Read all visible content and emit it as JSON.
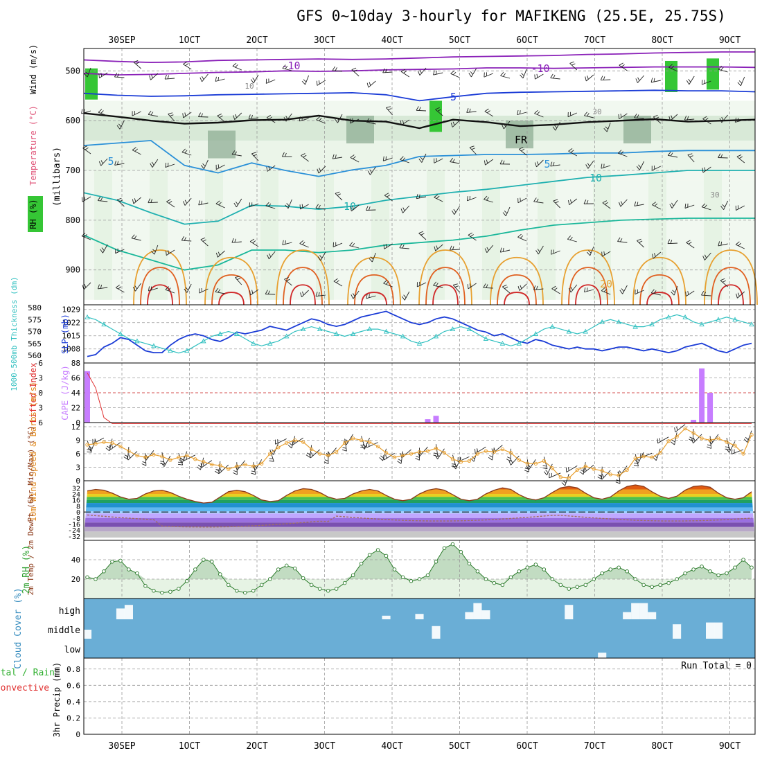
{
  "title": "GFS 0~10day 3-hourly for MAFIKENG (25.5E, 25.75S)",
  "run_total_label": "Run Total = 0",
  "dates": [
    "30SEP",
    "1OCT",
    "2OCT",
    "3OCT",
    "4OCT",
    "5OCT",
    "6OCT",
    "7OCT",
    "8OCT",
    "9OCT"
  ],
  "colors": {
    "grid": "#9a9a9a",
    "rh_dark": "#8aaa90",
    "rh_mid": "#c2dcc2",
    "rh_light": "#e6f3e4",
    "rh_bright": "#35c635",
    "cloud": "#6aaed6",
    "cape": "#c77dff",
    "lifted": "#e03030",
    "slp": "#1a3bd6",
    "thickness": "#30c0c0",
    "wind": "#e8a030",
    "temp_line": "#8b3a1a",
    "dew": "#a07060"
  },
  "chart_data": [
    {
      "type": "contour",
      "name": "upper-air",
      "ylabel": "(millibars)",
      "side_labels": [
        "RH (%)",
        "Temperature (°C)",
        "Wind (m/s)"
      ],
      "y_ticks": [
        500,
        600,
        700,
        800,
        900
      ],
      "ylim": [
        970,
        455
      ],
      "contour_labels": [
        "-10",
        "-10",
        "-5",
        "5",
        "5",
        "10",
        "10",
        "20",
        "FR",
        "10",
        "30",
        "30"
      ],
      "isotherms": [
        {
          "temp": -10,
          "color": "#8a20b8",
          "p": [
            478,
            481,
            483,
            482,
            479,
            478,
            477,
            476,
            477,
            476,
            474,
            472,
            471,
            470,
            469,
            467,
            466,
            464,
            463,
            462,
            462
          ]
        },
        {
          "temp": -10,
          "color": "#8a20b8",
          "p": [
            505,
            508,
            507,
            505,
            503,
            502,
            500,
            501,
            500,
            498,
            497,
            496,
            494,
            494,
            495,
            494,
            493,
            492,
            492,
            492,
            493
          ]
        },
        {
          "temp": -5,
          "color": "#1a3bd6",
          "p": [
            545,
            549,
            551,
            550,
            548,
            547,
            546,
            545,
            544,
            548,
            560,
            552,
            545,
            543,
            542,
            541,
            540,
            539,
            540,
            540,
            542
          ]
        },
        {
          "temp": 0,
          "color": "#111111",
          "p": [
            585,
            592,
            600,
            606,
            604,
            599,
            598,
            590,
            600,
            602,
            615,
            598,
            603,
            611,
            608,
            603,
            600,
            597,
            602,
            600,
            598
          ]
        },
        {
          "temp": 5,
          "color": "#2a90d8",
          "p": [
            650,
            645,
            640,
            690,
            705,
            685,
            700,
            712,
            699,
            690,
            672,
            670,
            668,
            668,
            667,
            665,
            665,
            662,
            660,
            660,
            660
          ]
        },
        {
          "temp": 10,
          "color": "#1fb0b0",
          "p": [
            745,
            760,
            785,
            808,
            802,
            770,
            772,
            778,
            772,
            760,
            752,
            744,
            738,
            730,
            722,
            714,
            710,
            705,
            700,
            700,
            700
          ]
        },
        {
          "temp": 15,
          "color": "#1ab79a",
          "p": [
            830,
            860,
            880,
            900,
            890,
            860,
            860,
            865,
            860,
            850,
            845,
            840,
            832,
            820,
            810,
            805,
            800,
            798,
            796,
            796,
            796
          ]
        }
      ]
    },
    {
      "type": "line",
      "name": "slp-thickness",
      "left_label": "1000-500mb Thickness (dm)",
      "right_label": "SLP (mb)",
      "thickness_ticks": [
        560,
        565,
        570,
        575,
        580
      ],
      "slp_ticks": [
        1008,
        1015,
        1022,
        1029
      ],
      "series": [
        {
          "name": "SLP (mb)",
          "axis": "slp",
          "values": [
            1004,
            1005,
            1009,
            1011,
            1014,
            1013,
            1010,
            1007,
            1006,
            1006,
            1010,
            1013,
            1015,
            1016,
            1015,
            1013,
            1012,
            1014,
            1017,
            1016,
            1017,
            1018,
            1020,
            1019,
            1018,
            1020,
            1022,
            1024,
            1023,
            1021,
            1020,
            1021,
            1023,
            1025,
            1026,
            1027,
            1028,
            1026,
            1024,
            1022,
            1021,
            1022,
            1024,
            1025,
            1024,
            1022,
            1020,
            1018,
            1017,
            1015,
            1016,
            1014,
            1012,
            1011,
            1013,
            1012,
            1010,
            1009,
            1008,
            1009,
            1008,
            1008,
            1007,
            1008,
            1009,
            1009,
            1008,
            1007,
            1008,
            1007,
            1006,
            1007,
            1009,
            1010,
            1011,
            1009,
            1007,
            1006,
            1008,
            1010,
            1011
          ]
        },
        {
          "name": "Thickness (dm)",
          "axis": "thickness",
          "values": [
            576,
            575,
            573,
            571,
            569,
            567,
            566,
            565,
            564,
            563,
            562,
            561,
            562,
            564,
            566,
            568,
            569,
            570,
            569,
            567,
            565,
            564,
            565,
            566,
            568,
            570,
            571,
            572,
            571,
            570,
            569,
            568,
            569,
            570,
            571,
            571,
            570,
            569,
            568,
            566,
            565,
            566,
            568,
            570,
            571,
            572,
            571,
            569,
            567,
            566,
            565,
            564,
            565,
            567,
            569,
            571,
            572,
            571,
            570,
            569,
            570,
            572,
            574,
            575,
            574,
            573,
            572,
            572,
            573,
            575,
            576,
            577,
            576,
            574,
            573,
            574,
            575,
            576,
            575,
            574,
            573
          ]
        }
      ]
    },
    {
      "type": "bar",
      "name": "cape-lifted",
      "left_label": "Lifted Index",
      "right_label": "CAPE (J/kg)",
      "li_ticks": [
        "-6",
        "-3",
        "0",
        "3",
        "6"
      ],
      "cape_ticks": [
        88,
        66,
        44,
        22,
        0
      ],
      "bars": [
        {
          "step": 0,
          "cape": 76
        },
        {
          "step": 41,
          "cape": 5
        },
        {
          "step": 42,
          "cape": 10
        },
        {
          "step": 73,
          "cape": 4
        },
        {
          "step": 74,
          "cape": 80
        },
        {
          "step": 75,
          "cape": 44
        }
      ],
      "lifted_index": [
        -4,
        -1,
        5,
        9,
        9,
        9,
        9,
        9,
        9,
        9,
        9,
        9,
        9,
        9,
        9,
        9,
        9,
        9,
        9,
        9,
        9,
        9,
        9,
        9,
        9,
        9,
        9,
        9,
        9,
        9,
        9,
        9,
        9,
        9,
        9,
        9,
        9,
        9,
        9,
        9,
        9,
        9,
        9,
        9,
        9,
        9,
        9,
        9,
        9,
        9,
        9,
        9,
        9,
        9,
        9,
        9,
        9,
        9,
        9,
        9,
        9,
        9,
        9,
        9,
        9,
        9,
        9,
        9,
        9,
        9,
        9,
        9,
        9,
        9,
        9,
        9,
        9,
        9,
        9,
        9,
        9
      ]
    },
    {
      "type": "line",
      "name": "wind-10m",
      "ylabel": "10m Wind Speed & Barbs (m/s)",
      "ylim": [
        0,
        12
      ],
      "y_ticks": [
        0,
        3,
        6,
        9,
        12
      ],
      "values": [
        8,
        8.2,
        8.6,
        8.4,
        7.6,
        6.6,
        5.6,
        5.2,
        5.8,
        5.4,
        4.6,
        5.2,
        5.6,
        4.8,
        4.2,
        3.6,
        3.4,
        2.6,
        3.2,
        3.6,
        3.2,
        3.8,
        6,
        7.4,
        8.4,
        9,
        8.6,
        7,
        6,
        5.6,
        6.4,
        8.4,
        9.4,
        9,
        8.6,
        7.6,
        6.2,
        5.2,
        5.6,
        6,
        6.4,
        6.6,
        7.2,
        6.2,
        4.8,
        4.2,
        4.4,
        6,
        6.6,
        6.4,
        7,
        6.2,
        4.6,
        3.8,
        3.8,
        4.4,
        2.8,
        0.8,
        0.6,
        2.4,
        3.2,
        2.6,
        2.2,
        1.4,
        1.2,
        2.4,
        5,
        5.4,
        5.2,
        6.2,
        8.8,
        9.8,
        11.6,
        10.6,
        9.4,
        9,
        9.4,
        8.6,
        7.8,
        6,
        10.2
      ]
    },
    {
      "type": "area",
      "name": "temp-2m",
      "ylabel": "2m Temp / 2m DewPt (6hr Min/Max) (°C)",
      "y_ticks": [
        "32",
        "24",
        "16",
        "8",
        "0",
        "-8",
        "-16",
        "-24",
        "-32"
      ],
      "ylim": [
        -40,
        40
      ],
      "temp": [
        28,
        30,
        29,
        25,
        20,
        17,
        18,
        24,
        28,
        29,
        26,
        21,
        17,
        14,
        12,
        13,
        20,
        27,
        29,
        27,
        22,
        16,
        14,
        15,
        22,
        28,
        31,
        30,
        26,
        20,
        17,
        18,
        24,
        28,
        30,
        28,
        22,
        17,
        15,
        17,
        24,
        29,
        31,
        29,
        23,
        17,
        15,
        17,
        24,
        29,
        32,
        30,
        23,
        18,
        16,
        19,
        26,
        32,
        34,
        32,
        25,
        19,
        17,
        20,
        28,
        34,
        36,
        34,
        27,
        21,
        18,
        21,
        29,
        34,
        35,
        33,
        25,
        19,
        17,
        19,
        27
      ]
    },
    {
      "type": "area",
      "name": "rh-2m",
      "ylabel": "2m RH (%)",
      "ylim": [
        0,
        60
      ],
      "y_ticks": [
        20,
        40
      ],
      "values": [
        22,
        20,
        28,
        38,
        39,
        30,
        26,
        13,
        8,
        6,
        7,
        10,
        18,
        30,
        40,
        38,
        25,
        14,
        8,
        6,
        8,
        14,
        20,
        30,
        34,
        31,
        21,
        14,
        10,
        8,
        10,
        16,
        24,
        36,
        45,
        50,
        44,
        30,
        22,
        18,
        20,
        24,
        38,
        52,
        56,
        48,
        36,
        28,
        20,
        16,
        14,
        22,
        28,
        32,
        35,
        30,
        20,
        14,
        10,
        12,
        14,
        20,
        26,
        30,
        32,
        28,
        20,
        14,
        12,
        14,
        16,
        20,
        26,
        30,
        33,
        28,
        24,
        26,
        32,
        40,
        32
      ]
    },
    {
      "type": "heatmap",
      "name": "cloud-cover",
      "ylabel": "Cloud Cover (%)",
      "rows": [
        "high",
        "middle",
        "low"
      ],
      "cells": [
        {
          "step": 4,
          "row": "high",
          "cover": 60
        },
        {
          "step": 5,
          "row": "high",
          "cover": 80
        },
        {
          "step": 0,
          "row": "middle",
          "cover": 50
        },
        {
          "step": 46,
          "row": "high",
          "cover": 40
        },
        {
          "step": 47,
          "row": "high",
          "cover": 90
        },
        {
          "step": 48,
          "row": "high",
          "cover": 50
        },
        {
          "step": 42,
          "row": "middle",
          "cover": 70
        },
        {
          "step": 36,
          "row": "high",
          "cover": 20
        },
        {
          "step": 40,
          "row": "high",
          "cover": 30
        },
        {
          "step": 58,
          "row": "high",
          "cover": 80
        },
        {
          "step": 62,
          "row": "low",
          "cover": 30
        },
        {
          "step": 65,
          "row": "high",
          "cover": 40
        },
        {
          "step": 66,
          "row": "high",
          "cover": 90
        },
        {
          "step": 67,
          "row": "high",
          "cover": 90
        },
        {
          "step": 68,
          "row": "high",
          "cover": 40
        },
        {
          "step": 71,
          "row": "middle",
          "cover": 80
        },
        {
          "step": 75,
          "row": "middle",
          "cover": 90
        },
        {
          "step": 76,
          "row": "middle",
          "cover": 90
        }
      ]
    },
    {
      "type": "bar",
      "name": "precip",
      "ylabel": "3hr Precip (mm)",
      "side_labels": [
        "Total / Rain",
        "Convective"
      ],
      "ylim": [
        0,
        1
      ],
      "y_ticks": [
        "0",
        "0.2",
        "0.4",
        "0.6",
        "0.8"
      ],
      "values": []
    }
  ]
}
